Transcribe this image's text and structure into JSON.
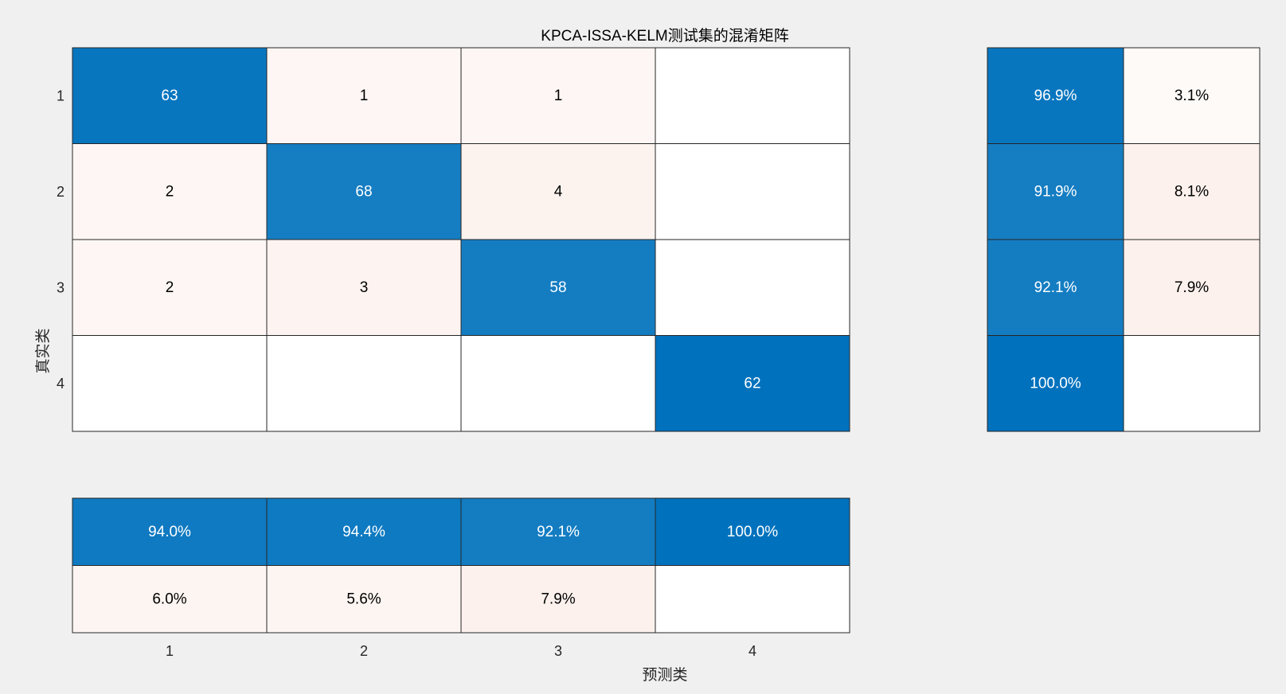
{
  "chart_data": {
    "type": "heatmap",
    "title": "KPCA-ISSA-KELM测试集的混淆矩阵",
    "xlabel": "预测类",
    "ylabel": "真实类",
    "classes": [
      "1",
      "2",
      "3",
      "4"
    ],
    "matrix": [
      [
        63,
        1,
        1,
        null
      ],
      [
        2,
        68,
        4,
        null
      ],
      [
        2,
        3,
        58,
        null
      ],
      [
        null,
        null,
        null,
        62
      ]
    ],
    "row_summary": [
      {
        "correct": "96.9%",
        "incorrect": "3.1%"
      },
      {
        "correct": "91.9%",
        "incorrect": "8.1%"
      },
      {
        "correct": "92.1%",
        "incorrect": "7.9%"
      },
      {
        "correct": "100.0%",
        "incorrect": ""
      }
    ],
    "column_summary": {
      "correct": [
        "94.0%",
        "94.4%",
        "92.1%",
        "100.0%"
      ],
      "incorrect": [
        "6.0%",
        "5.6%",
        "7.9%",
        ""
      ]
    },
    "colors": {
      "background": "#f0f0f0",
      "correct_max": "#0072bd",
      "incorrect_max": "#d95319",
      "empty": "#ffffff",
      "border": "#262626",
      "text_dark": "#000000",
      "text_light": "#ffffff"
    }
  }
}
